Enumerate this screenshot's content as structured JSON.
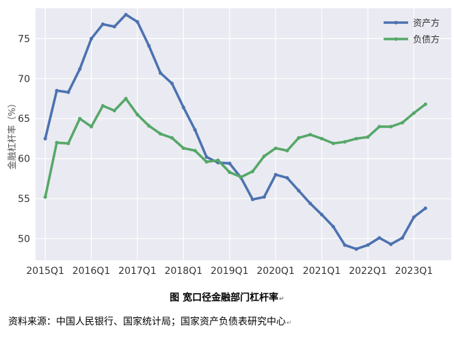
{
  "chart_data": {
    "type": "line",
    "ylabel": "金融杠杆率（%）",
    "ylim": [
      47.3,
      78.8
    ],
    "yticks": [
      50,
      55,
      60,
      65,
      70,
      75
    ],
    "xlim": [
      2014.79,
      2023.81
    ],
    "xticks": [
      {
        "x": 2015.0,
        "label": "2015Q1"
      },
      {
        "x": 2016.0,
        "label": "2016Q1"
      },
      {
        "x": 2017.0,
        "label": "2017Q1"
      },
      {
        "x": 2018.0,
        "label": "2018Q1"
      },
      {
        "x": 2019.0,
        "label": "2019Q1"
      },
      {
        "x": 2020.0,
        "label": "2020Q1"
      },
      {
        "x": 2021.0,
        "label": "2021Q1"
      },
      {
        "x": 2022.0,
        "label": "2022Q1"
      },
      {
        "x": 2023.0,
        "label": "2023Q1"
      }
    ],
    "grid": true,
    "legend_position": "top-right",
    "x": [
      2015.0,
      2015.25,
      2015.5,
      2015.75,
      2016.0,
      2016.25,
      2016.5,
      2016.75,
      2017.0,
      2017.25,
      2017.5,
      2017.75,
      2018.0,
      2018.25,
      2018.5,
      2018.75,
      2019.0,
      2019.25,
      2019.5,
      2019.75,
      2020.0,
      2020.25,
      2020.5,
      2020.75,
      2021.0,
      2021.25,
      2021.5,
      2021.75,
      2022.0,
      2022.25,
      2022.5,
      2022.75,
      2023.0,
      2023.25
    ],
    "series": [
      {
        "name": "资产方",
        "color": "#4c72b0",
        "values": [
          62.5,
          68.5,
          68.3,
          71.2,
          75.0,
          76.8,
          76.5,
          78.0,
          77.1,
          74.1,
          70.7,
          69.4,
          66.4,
          63.6,
          60.2,
          59.5,
          59.4,
          57.6,
          54.9,
          55.2,
          58.0,
          57.6,
          56.0,
          54.4,
          53.0,
          51.5,
          49.2,
          48.7,
          49.2,
          50.1,
          49.3,
          50.1,
          52.7,
          53.8
        ]
      },
      {
        "name": "负债方",
        "color": "#55a868",
        "values": [
          55.2,
          62.0,
          61.9,
          65.0,
          64.0,
          66.6,
          66.0,
          67.5,
          65.5,
          64.1,
          63.1,
          62.6,
          61.3,
          61.0,
          59.6,
          59.8,
          58.3,
          57.7,
          58.4,
          60.3,
          61.3,
          61.0,
          62.6,
          63.0,
          62.5,
          61.9,
          62.1,
          62.5,
          62.7,
          64.0,
          64.0,
          64.5,
          65.7,
          66.8
        ]
      }
    ]
  },
  "caption": "图  宽口径金融部门杠杆率",
  "source": "资料来源：中国人民银行、国家统计局；国家资产负债表研究中心",
  "return_mark": "↵"
}
